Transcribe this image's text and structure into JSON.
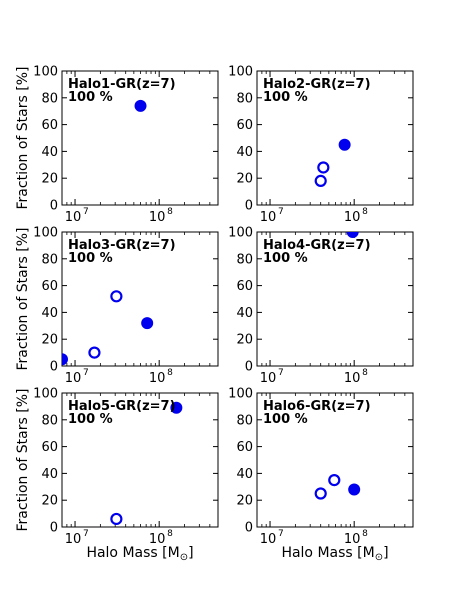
{
  "figure": {
    "ylabel": "Fraction of Stars [%]",
    "xlabel": "Halo Mass [$M_\\odot$]",
    "xlabel_text": "Halo Mass [M",
    "xlabel_sub": "⊙",
    "xlabel_end": "]"
  },
  "chart_data": [
    {
      "type": "scatter",
      "title": "Halo1-GR(z=7)",
      "subtitle": "100 %",
      "xscale": "log",
      "xlim": [
        7000000.0,
        500000000.0
      ],
      "ylim": [
        0,
        100
      ],
      "xticks": [
        {
          "value": 10000000.0,
          "base": "10",
          "exp": "7"
        },
        {
          "value": 100000000.0,
          "base": "10",
          "exp": "8"
        }
      ],
      "yticks": [
        0,
        20,
        40,
        60,
        80,
        100
      ],
      "series": [
        {
          "marker": "filled",
          "color": "#0000ee",
          "points": [
            {
              "x": 60000000.0,
              "y": 74
            }
          ]
        },
        {
          "marker": "open",
          "color": "#0000ee",
          "points": []
        }
      ]
    },
    {
      "type": "scatter",
      "title": "Halo2-GR(z=7)",
      "subtitle": "100 %",
      "xscale": "log",
      "xlim": [
        7000000.0,
        500000000.0
      ],
      "ylim": [
        0,
        100
      ],
      "xticks": [
        {
          "value": 10000000.0,
          "base": "10",
          "exp": "7"
        },
        {
          "value": 100000000.0,
          "base": "10",
          "exp": "8"
        }
      ],
      "yticks": [
        0,
        20,
        40,
        60,
        80,
        100
      ],
      "series": [
        {
          "marker": "filled",
          "color": "#0000ee",
          "points": [
            {
              "x": 77000000.0,
              "y": 45
            }
          ]
        },
        {
          "marker": "open",
          "color": "#0000ee",
          "points": [
            {
              "x": 43000000.0,
              "y": 28
            },
            {
              "x": 40000000.0,
              "y": 18
            }
          ]
        }
      ]
    },
    {
      "type": "scatter",
      "title": "Halo3-GR(z=7)",
      "subtitle": "100 %",
      "xscale": "log",
      "xlim": [
        7000000.0,
        500000000.0
      ],
      "ylim": [
        0,
        100
      ],
      "xticks": [
        {
          "value": 10000000.0,
          "base": "10",
          "exp": "7"
        },
        {
          "value": 100000000.0,
          "base": "10",
          "exp": "8"
        }
      ],
      "yticks": [
        0,
        20,
        40,
        60,
        80,
        100
      ],
      "series": [
        {
          "marker": "filled",
          "color": "#0000ee",
          "points": [
            {
              "x": 72000000.0,
              "y": 32
            },
            {
              "x": 7000000.0,
              "y": 5
            }
          ]
        },
        {
          "marker": "open",
          "color": "#0000ee",
          "points": [
            {
              "x": 31000000.0,
              "y": 52
            },
            {
              "x": 17000000.0,
              "y": 10
            }
          ]
        }
      ]
    },
    {
      "type": "scatter",
      "title": "Halo4-GR(z=7)",
      "subtitle": "100 %",
      "xscale": "log",
      "xlim": [
        7000000.0,
        500000000.0
      ],
      "ylim": [
        0,
        100
      ],
      "xticks": [
        {
          "value": 10000000.0,
          "base": "10",
          "exp": "7"
        },
        {
          "value": 100000000.0,
          "base": "10",
          "exp": "8"
        }
      ],
      "yticks": [
        0,
        20,
        40,
        60,
        80,
        100
      ],
      "series": [
        {
          "marker": "filled",
          "color": "#0000ee",
          "points": [
            {
              "x": 96000000.0,
              "y": 100
            }
          ]
        },
        {
          "marker": "open",
          "color": "#0000ee",
          "points": []
        }
      ]
    },
    {
      "type": "scatter",
      "title": "Halo5-GR(z=7)",
      "subtitle": "100 %",
      "xscale": "log",
      "xlim": [
        7000000.0,
        500000000.0
      ],
      "ylim": [
        0,
        100
      ],
      "xticks": [
        {
          "value": 10000000.0,
          "base": "10",
          "exp": "7"
        },
        {
          "value": 100000000.0,
          "base": "10",
          "exp": "8"
        }
      ],
      "yticks": [
        0,
        20,
        40,
        60,
        80,
        100
      ],
      "series": [
        {
          "marker": "filled",
          "color": "#0000ee",
          "points": [
            {
              "x": 160000000.0,
              "y": 89
            }
          ]
        },
        {
          "marker": "open",
          "color": "#0000ee",
          "points": [
            {
              "x": 31000000.0,
              "y": 6
            }
          ]
        }
      ]
    },
    {
      "type": "scatter",
      "title": "Halo6-GR(z=7)",
      "subtitle": "100 %",
      "xscale": "log",
      "xlim": [
        7000000.0,
        500000000.0
      ],
      "ylim": [
        0,
        100
      ],
      "xticks": [
        {
          "value": 10000000.0,
          "base": "10",
          "exp": "7"
        },
        {
          "value": 100000000.0,
          "base": "10",
          "exp": "8"
        }
      ],
      "yticks": [
        0,
        20,
        40,
        60,
        80,
        100
      ],
      "series": [
        {
          "marker": "filled",
          "color": "#0000ee",
          "points": [
            {
              "x": 100000000.0,
              "y": 28
            }
          ]
        },
        {
          "marker": "open",
          "color": "#0000ee",
          "points": [
            {
              "x": 58000000.0,
              "y": 35
            },
            {
              "x": 40000000.0,
              "y": 25
            }
          ]
        }
      ]
    }
  ]
}
